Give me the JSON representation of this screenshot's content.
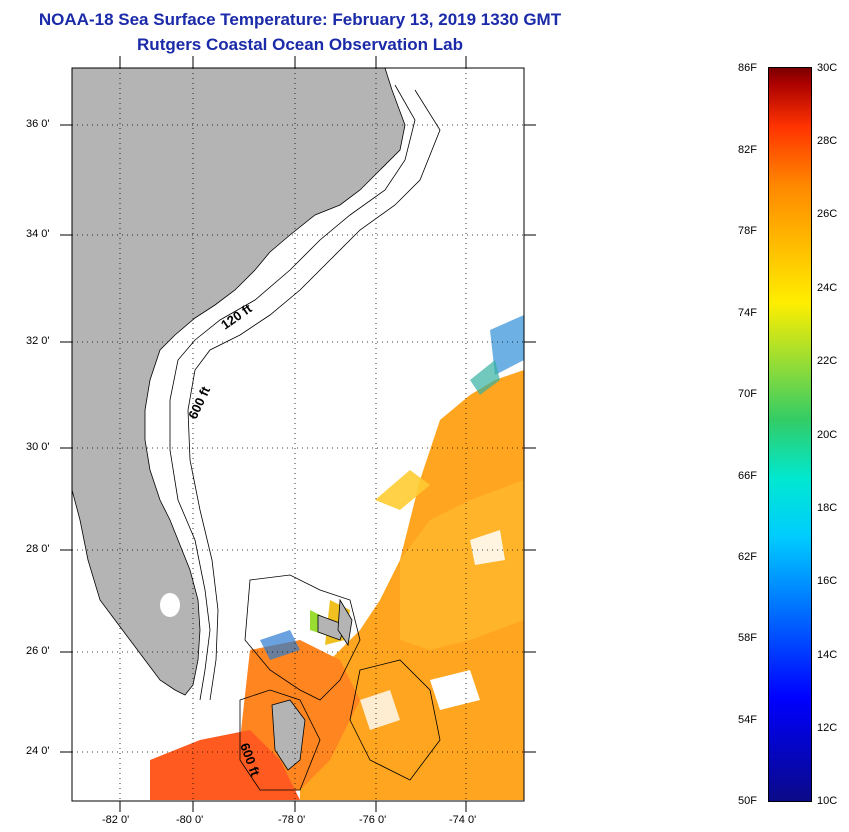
{
  "title": "NOAA-18 Sea Surface Temperature:  February 13, 2019 1330 GMT",
  "subtitle": "Rutgers Coastal Ocean Observation Lab",
  "map": {
    "lat_ticks": [
      "36 0'",
      "34 0'",
      "32 0'",
      "30 0'",
      "28 0'",
      "26 0'",
      "24 0'"
    ],
    "lon_ticks": [
      "-82 0'",
      "-80 0'",
      "-78 0'",
      "-76 0'",
      "-74 0'"
    ],
    "contours": [
      "120 ft",
      "600 ft",
      "600 ft"
    ],
    "colors": {
      "land": "#b4b4b4",
      "ocean_warm": "#ff8c1a",
      "ocean_mid": "#ffb02a",
      "ocean_hot": "#ff5522",
      "cloud_mask": "#ffffff"
    }
  },
  "colorbar": {
    "fahrenheit": [
      "86F",
      "82F",
      "78F",
      "74F",
      "70F",
      "66F",
      "62F",
      "58F",
      "54F",
      "50F"
    ],
    "celsius": [
      "30C",
      "28C",
      "26C",
      "24C",
      "22C",
      "20C",
      "18C",
      "16C",
      "14C",
      "12C",
      "10C"
    ]
  }
}
